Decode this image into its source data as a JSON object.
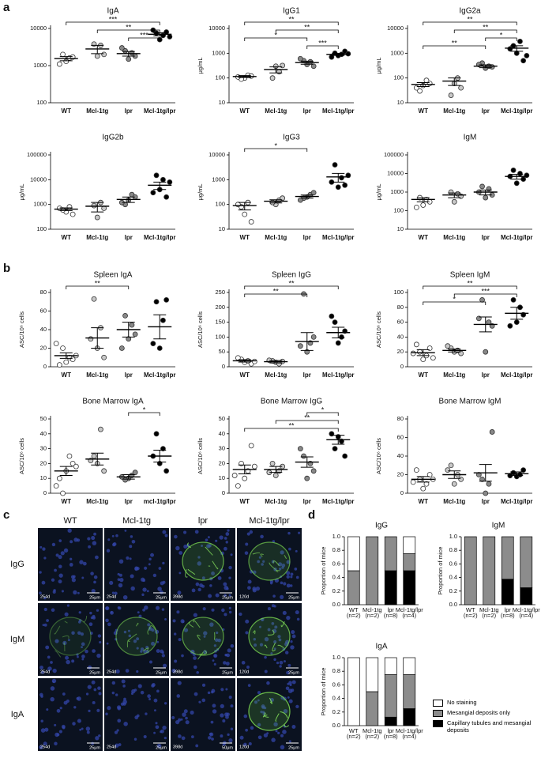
{
  "panel_labels": [
    "a",
    "b",
    "c",
    "d"
  ],
  "chart_data": [
    {
      "type": "dot",
      "title": "IgA",
      "categories": [
        "WT",
        "Mcl-1tg",
        "lpr",
        "Mcl-1tg/lpr"
      ],
      "colors": [
        "#ffffff",
        "#c8c8c8",
        "#888888",
        "#000000"
      ],
      "log": true,
      "ylim": [
        100,
        10000
      ],
      "yticks": [
        100,
        1000,
        10000
      ],
      "values": [
        [
          1300,
          1600,
          2000,
          1700,
          1100
        ],
        [
          1800,
          3500,
          3800,
          2000
        ],
        [
          1500,
          2200,
          2500,
          1800,
          3000
        ],
        [
          5000,
          6500,
          7500,
          8000,
          9000,
          6000
        ]
      ],
      "mean": [
        1550,
        2800,
        2100,
        7000
      ],
      "sem": [
        200,
        700,
        300,
        700
      ],
      "brackets": [
        {
          "from": 0,
          "to": 3,
          "label": "***"
        },
        {
          "from": 1,
          "to": 3,
          "label": "**"
        },
        {
          "from": 2,
          "to": 3,
          "label": "***"
        }
      ]
    },
    {
      "type": "dot",
      "title": "IgG1",
      "ylabel": "μg/mL",
      "categories": [
        "WT",
        "Mcl-1tg",
        "lpr",
        "Mcl-1tg/lpr"
      ],
      "colors": [
        "#ffffff",
        "#c8c8c8",
        "#888888",
        "#000000"
      ],
      "log": true,
      "ylim": [
        10,
        10000
      ],
      "yticks": [
        10,
        100,
        1000,
        10000
      ],
      "values": [
        [
          100,
          130,
          90,
          120,
          110
        ],
        [
          300,
          180,
          100,
          320
        ],
        [
          350,
          450,
          500,
          300,
          600
        ],
        [
          800,
          900,
          1000,
          1200,
          700,
          950
        ]
      ],
      "mean": [
        115,
        220,
        420,
        900
      ],
      "sem": [
        10,
        60,
        60,
        80
      ],
      "brackets": [
        {
          "from": 0,
          "to": 3,
          "label": "**"
        },
        {
          "from": 1,
          "to": 3,
          "label": "**"
        },
        {
          "from": 0,
          "to": 2,
          "label": "*"
        },
        {
          "from": 2,
          "to": 3,
          "label": "***"
        }
      ]
    },
    {
      "type": "dot",
      "title": "IgG2a",
      "ylabel": "μg/mL",
      "categories": [
        "WT",
        "Mcl-1tg",
        "lpr",
        "Mcl-1tg/lpr"
      ],
      "colors": [
        "#ffffff",
        "#c8c8c8",
        "#888888",
        "#000000"
      ],
      "log": true,
      "ylim": [
        10,
        10000
      ],
      "yticks": [
        10,
        100,
        1000,
        10000
      ],
      "values": [
        [
          50,
          80,
          30,
          60,
          40
        ],
        [
          60,
          100,
          20,
          40
        ],
        [
          250,
          300,
          400,
          280,
          350
        ],
        [
          1000,
          3000,
          2000,
          500,
          1500,
          800
        ]
      ],
      "mean": [
        55,
        75,
        300,
        1600
      ],
      "sem": [
        10,
        25,
        40,
        400
      ],
      "brackets": [
        {
          "from": 0,
          "to": 3,
          "label": "**"
        },
        {
          "from": 1,
          "to": 3,
          "label": "**"
        },
        {
          "from": 2,
          "to": 3,
          "label": "*"
        },
        {
          "from": 0,
          "to": 2,
          "label": "**"
        }
      ]
    },
    {
      "type": "dot",
      "title": "IgG2b",
      "ylabel": "μg/mL",
      "categories": [
        "WT",
        "Mcl-1tg",
        "lpr",
        "Mcl-1tg/lpr"
      ],
      "colors": [
        "#ffffff",
        "#c8c8c8",
        "#888888",
        "#000000"
      ],
      "log": true,
      "ylim": [
        100,
        100000
      ],
      "yticks": [
        100,
        1000,
        10000,
        100000
      ],
      "values": [
        [
          500,
          800,
          600,
          400,
          700
        ],
        [
          300,
          1200,
          900,
          700
        ],
        [
          1500,
          2500,
          1000,
          2000,
          1200
        ],
        [
          4000,
          10000,
          15000,
          2000,
          3000,
          8000
        ]
      ],
      "mean": [
        650,
        850,
        1600,
        6000
      ],
      "sem": [
        80,
        350,
        400,
        2000
      ],
      "brackets": []
    },
    {
      "type": "dot",
      "title": "IgG3",
      "ylabel": "μg/mL",
      "categories": [
        "WT",
        "Mcl-1tg",
        "lpr",
        "Mcl-1tg/lpr"
      ],
      "colors": [
        "#ffffff",
        "#c8c8c8",
        "#888888",
        "#000000"
      ],
      "log": true,
      "ylim": [
        10,
        10000
      ],
      "yticks": [
        10,
        100,
        1000,
        10000
      ],
      "values": [
        [
          40,
          120,
          80,
          20,
          100
        ],
        [
          100,
          150,
          120,
          180
        ],
        [
          200,
          250,
          180,
          300,
          150
        ],
        [
          500,
          1200,
          4000,
          600,
          800,
          1500
        ]
      ],
      "mean": [
        90,
        135,
        210,
        1300
      ],
      "sem": [
        30,
        20,
        30,
        500
      ],
      "brackets": [
        {
          "from": 0,
          "to": 2,
          "label": "*"
        }
      ]
    },
    {
      "type": "dot",
      "title": "IgM",
      "ylabel": "μg/mL",
      "categories": [
        "WT",
        "Mcl-1tg",
        "lpr",
        "Mcl-1tg/lpr"
      ],
      "colors": [
        "#ffffff",
        "#c8c8c8",
        "#888888",
        "#000000"
      ],
      "log": true,
      "ylim": [
        10,
        100000
      ],
      "yticks": [
        10,
        100,
        1000,
        10000,
        100000
      ],
      "values": [
        [
          200,
          400,
          500,
          300,
          150
        ],
        [
          300,
          800,
          1000,
          600
        ],
        [
          500,
          1500,
          2000,
          700,
          1000
        ],
        [
          3000,
          10000,
          15000,
          5000,
          7000,
          8000
        ]
      ],
      "mean": [
        400,
        700,
        1000,
        7000
      ],
      "sem": [
        100,
        200,
        300,
        2000
      ],
      "brackets": []
    },
    {
      "type": "dot",
      "title": "Spleen IgA",
      "ylabel": "ASC/10⁶ cells",
      "categories": [
        "WT",
        "Mcl-1tg",
        "lpr",
        "Mcl-1tg/lpr"
      ],
      "colors": [
        "#ffffff",
        "#c8c8c8",
        "#888888",
        "#000000"
      ],
      "ylim": [
        0,
        80
      ],
      "yticks": [
        0,
        20,
        40,
        60,
        80
      ],
      "values": [
        [
          5,
          10,
          20,
          8,
          2,
          12,
          25
        ],
        [
          20,
          42,
          73,
          10,
          30
        ],
        [
          30,
          45,
          55,
          35,
          20
        ],
        [
          20,
          50,
          70,
          72,
          25
        ]
      ],
      "mean": [
        12,
        31,
        40,
        43
      ],
      "sem": [
        3,
        11,
        8,
        13
      ],
      "brackets": [
        {
          "from": 0,
          "to": 2,
          "label": "**"
        }
      ]
    },
    {
      "type": "dot",
      "title": "Spleen IgG",
      "ylabel": "ASC/10⁶ cells",
      "categories": [
        "WT",
        "Mcl-1tg",
        "lpr",
        "Mcl-1tg/lpr"
      ],
      "colors": [
        "#ffffff",
        "#c8c8c8",
        "#888888",
        "#000000"
      ],
      "ylim": [
        0,
        250
      ],
      "yticks": [
        0,
        50,
        100,
        150,
        200,
        250
      ],
      "values": [
        [
          15,
          20,
          25,
          10,
          30,
          18
        ],
        [
          15,
          10,
          20,
          18,
          22
        ],
        [
          50,
          80,
          245,
          100,
          70
        ],
        [
          80,
          100,
          150,
          120,
          170
        ]
      ],
      "mean": [
        20,
        17,
        85,
        115
      ],
      "sem": [
        4,
        4,
        30,
        18
      ],
      "brackets": [
        {
          "from": 0,
          "to": 3,
          "label": "**"
        },
        {
          "from": 0,
          "to": 2,
          "label": "**"
        }
      ]
    },
    {
      "type": "dot",
      "title": "Spleen IgM",
      "ylabel": "ASC/10⁶ cells",
      "categories": [
        "WT",
        "Mcl-1tg",
        "lpr",
        "Mcl-1tg/lpr"
      ],
      "colors": [
        "#ffffff",
        "#c8c8c8",
        "#888888",
        "#000000"
      ],
      "ylim": [
        0,
        100
      ],
      "yticks": [
        0,
        20,
        40,
        60,
        80,
        100
      ],
      "values": [
        [
          10,
          15,
          20,
          25,
          30,
          12,
          18
        ],
        [
          20,
          22,
          25,
          18,
          28
        ],
        [
          20,
          60,
          90,
          55,
          65
        ],
        [
          60,
          80,
          90,
          70,
          55
        ]
      ],
      "mean": [
        19,
        22,
        57,
        72
      ],
      "sem": [
        4,
        2,
        10,
        8
      ],
      "brackets": [
        {
          "from": 0,
          "to": 3,
          "label": "**"
        },
        {
          "from": 1,
          "to": 3,
          "label": "***"
        },
        {
          "from": 0,
          "to": 2,
          "label": "*"
        }
      ]
    },
    {
      "type": "dot",
      "title": "Bone Marrow IgA",
      "ylabel": "ASC/10⁶ cells",
      "categories": [
        "WT",
        "Mcl-1tg",
        "lpr",
        "mcl-1tg/lpr"
      ],
      "colors": [
        "#ffffff",
        "#c8c8c8",
        "#888888",
        "#000000"
      ],
      "ylim": [
        0,
        50
      ],
      "yticks": [
        0,
        10,
        20,
        30,
        40,
        50
      ],
      "values": [
        [
          15,
          25,
          0,
          20,
          10,
          18,
          5
        ],
        [
          20,
          43,
          25,
          15,
          22
        ],
        [
          10,
          12,
          9,
          14,
          11
        ],
        [
          20,
          30,
          40,
          15,
          25
        ]
      ],
      "mean": [
        15,
        23,
        11,
        25
      ],
      "sem": [
        3,
        4,
        1.5,
        4
      ],
      "brackets": [
        {
          "from": 2,
          "to": 3,
          "label": "*"
        }
      ]
    },
    {
      "type": "dot",
      "title": "Bone Marrow IgG",
      "ylabel": "ASC/10⁶ cells",
      "categories": [
        "WT",
        "Mcl-1tg",
        "lpr",
        "Mcl-1tg/lpr"
      ],
      "colors": [
        "#ffffff",
        "#c8c8c8",
        "#888888",
        "#000000"
      ],
      "ylim": [
        0,
        50
      ],
      "yticks": [
        0,
        10,
        20,
        30,
        40,
        50
      ],
      "values": [
        [
          10,
          15,
          20,
          32,
          5,
          18,
          12
        ],
        [
          12,
          15,
          20,
          18,
          14
        ],
        [
          10,
          20,
          25,
          15,
          30
        ],
        [
          38,
          35,
          30,
          25,
          40
        ]
      ],
      "mean": [
        16,
        16,
        21,
        36
      ],
      "sem": [
        3,
        2,
        3.5,
        3
      ],
      "brackets": [
        {
          "from": 2,
          "to": 3,
          "label": "*"
        },
        {
          "from": 1,
          "to": 3,
          "label": "**"
        },
        {
          "from": 0,
          "to": 3,
          "label": "**"
        }
      ]
    },
    {
      "type": "dot",
      "title": "Bone Marrow IgM",
      "ylabel": "ASC/10⁶ cells",
      "categories": [
        "WT",
        "Mcl-1tg",
        "lpr",
        "Mcl-1tg/lpr"
      ],
      "colors": [
        "#ffffff",
        "#c8c8c8",
        "#888888",
        "#000000"
      ],
      "ylim": [
        0,
        80
      ],
      "yticks": [
        0,
        20,
        40,
        60,
        80
      ],
      "values": [
        [
          5,
          10,
          15,
          20,
          25,
          15,
          12
        ],
        [
          10,
          20,
          30,
          15,
          25
        ],
        [
          0,
          10,
          15,
          66,
          20
        ],
        [
          18,
          20,
          22,
          25,
          19
        ]
      ],
      "mean": [
        15,
        20,
        22,
        21
      ],
      "sem": [
        3,
        4,
        9,
        2
      ],
      "brackets": []
    },
    {
      "type": "stacked_bar",
      "title": "IgG",
      "ylabel": "Proportion of mice",
      "categories": [
        "WT",
        "Mcl-1tg",
        "lpr",
        "Mcl-1tg/lpr"
      ],
      "n_labels": [
        "(n=2)",
        "(n=2)",
        "(n=8)",
        "(n=4)"
      ],
      "ylim": [
        0,
        1
      ],
      "yticks": [
        {
          "value": 0,
          "label": "0.0"
        },
        {
          "value": 0.2,
          "label": "0.2"
        },
        {
          "value": 0.4,
          "label": "0.4"
        },
        {
          "value": 0.6,
          "label": "0.6"
        },
        {
          "value": 0.8,
          "label": "0.8"
        },
        {
          "value": 1,
          "label": "1.0"
        }
      ],
      "series": [
        {
          "color": "#ffffff",
          "values": [
            0.5,
            0,
            0,
            0.25
          ]
        },
        {
          "color": "#8c8c8c",
          "values": [
            0.5,
            1,
            0.5,
            0.25
          ]
        },
        {
          "color": "#000000",
          "values": [
            0,
            0,
            0.5,
            0.5
          ]
        }
      ]
    },
    {
      "type": "stacked_bar",
      "title": "IgM",
      "ylabel": "Proportion of mice",
      "categories": [
        "WT",
        "Mcl-1tg",
        "lpr",
        "Mcl-1tg/lpr"
      ],
      "n_labels": [
        "(n=2)",
        "(n=2)",
        "(n=8)",
        "(n=4)"
      ],
      "ylim": [
        0,
        1
      ],
      "yticks": [
        {
          "value": 0,
          "label": "0.0"
        },
        {
          "value": 0.2,
          "label": "0.2"
        },
        {
          "value": 0.4,
          "label": "0.4"
        },
        {
          "value": 0.6,
          "label": "0.6"
        },
        {
          "value": 0.8,
          "label": "0.8"
        },
        {
          "value": 1,
          "label": "1.0"
        }
      ],
      "series": [
        {
          "color": "#ffffff",
          "values": [
            0,
            0,
            0,
            0
          ]
        },
        {
          "color": "#8c8c8c",
          "values": [
            1,
            1,
            0.625,
            0.75
          ]
        },
        {
          "color": "#000000",
          "values": [
            0,
            0,
            0.375,
            0.25
          ]
        }
      ]
    },
    {
      "type": "stacked_bar",
      "title": "IgA",
      "ylabel": "Proportion of mice",
      "categories": [
        "WT",
        "Mcl-1tg",
        "lpr",
        "Mcl-1tg/lpr"
      ],
      "n_labels": [
        "(n=2)",
        "(n=2)",
        "(n=8)",
        "(n=4)"
      ],
      "ylim": [
        0,
        1
      ],
      "yticks": [
        {
          "value": 0,
          "label": "0.0"
        },
        {
          "value": 0.2,
          "label": "0.2"
        },
        {
          "value": 0.4,
          "label": "0.4"
        },
        {
          "value": 0.6,
          "label": "0.6"
        },
        {
          "value": 0.8,
          "label": "0.8"
        },
        {
          "value": 1,
          "label": "1.0"
        }
      ],
      "legend": "right",
      "series": [
        {
          "name": "No staining",
          "color": "#ffffff",
          "values": [
            1,
            0.5,
            0.25,
            0.25
          ]
        },
        {
          "name": "Mesangial deposits only",
          "color": "#8c8c8c",
          "values": [
            0,
            0.5,
            0.625,
            0.5
          ]
        },
        {
          "name": "Capillary tubules and mesangial deposits",
          "color": "#000000",
          "values": [
            0,
            0,
            0.125,
            0.25
          ]
        }
      ]
    }
  ],
  "micrographs": {
    "columns": [
      "WT",
      "Mcl-1tg",
      "lpr",
      "Mcl-1tg/lpr"
    ],
    "rows": [
      "IgG",
      "IgM",
      "IgA"
    ],
    "cells": [
      [
        {
          "age": "254d",
          "scale": "25μm"
        },
        {
          "age": "254d",
          "scale": "25μm"
        },
        {
          "age": "398d",
          "scale": "25μm"
        },
        {
          "age": "120d",
          "scale": "25μm"
        }
      ],
      [
        {
          "age": "254d",
          "scale": "25μm"
        },
        {
          "age": "254d",
          "scale": "25μm"
        },
        {
          "age": "398d",
          "scale": "25μm"
        },
        {
          "age": "120d",
          "scale": "25μm"
        }
      ],
      [
        {
          "age": "254d",
          "scale": "25μm"
        },
        {
          "age": "254d",
          "scale": "25μm"
        },
        {
          "age": "398d",
          "scale": "50μm"
        },
        {
          "age": "120d",
          "scale": "25μm"
        }
      ]
    ]
  }
}
